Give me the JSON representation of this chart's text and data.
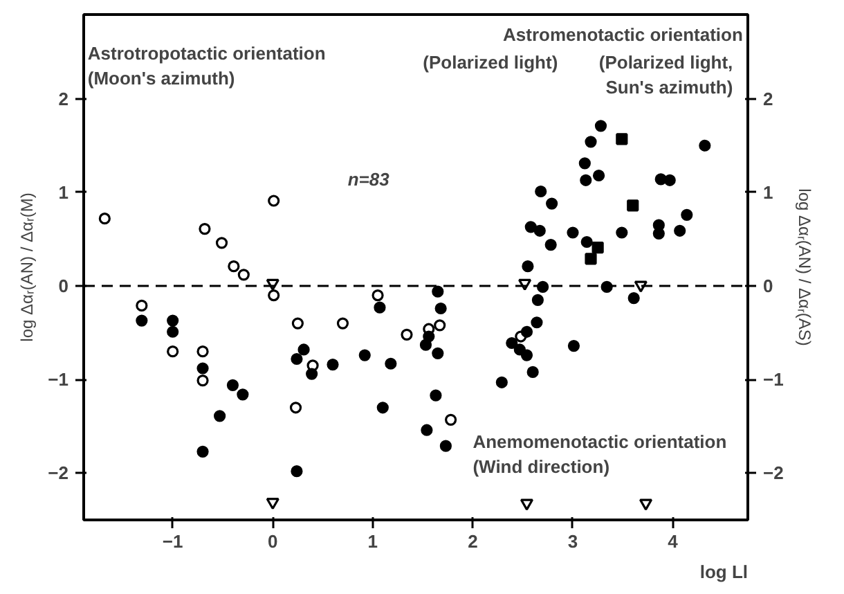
{
  "chart_data": {
    "type": "scatter",
    "xlabel": "log Ll",
    "ylabel": "log Δαᵣ(AN) / Δαᵣ(M)",
    "y2label": "log Δαᵣ(AN) / Δαᵣ(AS)",
    "xlim": [
      -1.89,
      4.75
    ],
    "xticks": [
      {
        "value": -1,
        "label": "−1"
      },
      0,
      1,
      2,
      3,
      4
    ],
    "ylim": [
      -2.5,
      2.9
    ],
    "yticks": [
      {
        "value": -2,
        "label": "−2"
      },
      {
        "value": -1,
        "label": "−1"
      },
      0,
      1,
      2
    ],
    "y2lim": [
      -2.5,
      2.9
    ],
    "y2ticks": [
      {
        "value": -2,
        "label": "−2"
      },
      {
        "value": -1,
        "label": "−1"
      },
      0,
      1,
      2
    ],
    "grid": false,
    "ref_lines": [
      {
        "axis": "y",
        "value": 0,
        "label": null,
        "color": "#000000",
        "line_style": "dashed"
      }
    ],
    "annotations": [
      "Astrotropotactic orientation\n(Moon's azimuth)",
      "Astromenotactic orientation",
      "(Polarized light)",
      "(Polarized light,\nSun's azimuth)",
      "n=83",
      "Anemomenotactic orientation\n(Wind direction)"
    ],
    "series": [
      {
        "color": "#000000",
        "marker": "circle",
        "x": [
          -1.68,
          -1.31,
          -1.0,
          -0.7,
          -0.7,
          -0.68,
          -0.51,
          -0.39,
          -0.29,
          0.01,
          0.01,
          0.25,
          0.23,
          0.4,
          0.7,
          1.05,
          1.34,
          1.56,
          1.67,
          1.78,
          2.48
        ],
        "values": [
          0.72,
          -0.21,
          -0.7,
          -0.7,
          -1.01,
          0.61,
          0.46,
          0.21,
          0.12,
          0.91,
          -0.1,
          -0.4,
          -1.3,
          -0.85,
          -0.4,
          -0.1,
          -0.52,
          -0.46,
          -0.42,
          -1.43,
          -0.54
        ]
      },
      {
        "color": "#000000",
        "marker": "circle",
        "x": [
          -1.31,
          -1.0,
          -1.0,
          -0.7,
          -0.7,
          -0.53,
          -0.4,
          -0.3,
          0.24,
          0.31,
          0.39,
          0.6,
          0.24,
          0.92,
          1.07,
          1.18,
          1.1,
          1.56,
          1.53,
          1.65,
          1.65,
          1.68,
          1.63,
          1.54,
          1.73,
          2.29,
          2.39,
          2.47,
          2.54,
          2.54,
          2.6,
          2.64,
          2.65,
          2.55,
          2.7,
          2.68,
          2.58,
          2.67,
          2.79,
          2.78,
          3.0,
          3.01,
          3.12,
          3.13,
          3.14,
          3.18,
          3.26,
          3.28,
          3.34,
          3.49,
          3.61,
          3.86,
          3.86,
          3.88,
          3.97,
          4.07,
          4.14,
          4.32
        ],
        "values": [
          -0.37,
          -0.37,
          -0.49,
          -0.88,
          -1.77,
          -1.39,
          -1.06,
          -1.16,
          -0.78,
          -0.68,
          -0.94,
          -0.84,
          -1.98,
          -0.74,
          -0.23,
          -0.83,
          -1.3,
          -0.54,
          -0.63,
          -0.72,
          -0.06,
          -0.24,
          -1.17,
          -1.54,
          -1.71,
          -1.03,
          -0.61,
          -0.68,
          -0.49,
          -0.74,
          -0.92,
          -0.39,
          -0.15,
          0.21,
          -0.01,
          1.01,
          0.63,
          0.59,
          0.88,
          0.44,
          0.57,
          -0.64,
          1.31,
          1.13,
          0.47,
          1.54,
          1.18,
          1.71,
          -0.01,
          0.57,
          -0.13,
          0.65,
          0.56,
          1.14,
          1.13,
          0.59,
          0.76,
          1.5
        ]
      },
      {
        "color": "#000000",
        "marker": "square",
        "x": [
          3.18,
          3.25,
          3.49,
          3.6
        ],
        "values": [
          0.29,
          0.41,
          1.57,
          0.86
        ]
      },
      {
        "color": "#000000",
        "marker": "triangle",
        "x": [
          0.0,
          2.52,
          3.68,
          0.0,
          2.54,
          3.73
        ],
        "values": [
          0.03,
          0.03,
          0.01,
          -2.31,
          -2.32,
          -2.32
        ]
      }
    ]
  }
}
